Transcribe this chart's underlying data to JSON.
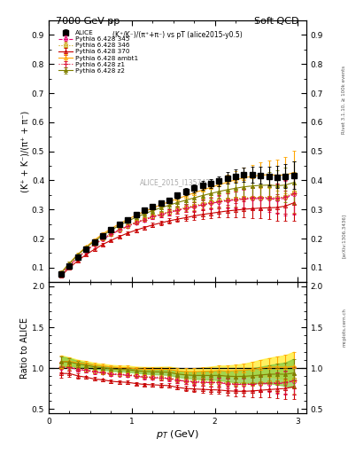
{
  "title_left": "7000 GeV pp",
  "title_right": "Soft QCD",
  "subplot_title": "(K⁺/K⁻)/(π⁺+π⁻) vs pT (alice2015-y0.5)",
  "ylabel_main": "(K⁺ + K⁻)/(π⁺ + π⁻)",
  "ylabel_ratio": "Ratio to ALICE",
  "xlabel": "p_T (GeV)",
  "watermark": "ALICE_2015_I1357424",
  "right_label1": "Rivet 3.1.10, ≥ 100k events",
  "right_label2": "[arXiv:1306.3436]",
  "right_label3": "mcplots.cern.ch",
  "ylim_main": [
    0.05,
    0.95
  ],
  "ylim_ratio": [
    0.45,
    2.05
  ],
  "xlim": [
    0.0,
    3.1
  ],
  "yticks_main": [
    0.1,
    0.2,
    0.3,
    0.4,
    0.5,
    0.6,
    0.7,
    0.8,
    0.9
  ],
  "yticks_ratio": [
    0.5,
    1.0,
    1.5,
    2.0
  ],
  "alice_x": [
    0.15,
    0.25,
    0.35,
    0.45,
    0.55,
    0.65,
    0.75,
    0.85,
    0.95,
    1.05,
    1.15,
    1.25,
    1.35,
    1.45,
    1.55,
    1.65,
    1.75,
    1.85,
    1.95,
    2.05,
    2.15,
    2.25,
    2.35,
    2.45,
    2.55,
    2.65,
    2.75,
    2.85,
    2.95
  ],
  "alice_y": [
    0.077,
    0.107,
    0.137,
    0.163,
    0.188,
    0.21,
    0.231,
    0.249,
    0.265,
    0.282,
    0.297,
    0.31,
    0.321,
    0.332,
    0.349,
    0.362,
    0.373,
    0.382,
    0.39,
    0.397,
    0.408,
    0.415,
    0.42,
    0.42,
    0.418,
    0.415,
    0.412,
    0.415,
    0.418
  ],
  "alice_yerr": [
    0.005,
    0.005,
    0.005,
    0.005,
    0.005,
    0.005,
    0.006,
    0.006,
    0.007,
    0.007,
    0.008,
    0.008,
    0.009,
    0.01,
    0.011,
    0.012,
    0.013,
    0.015,
    0.016,
    0.018,
    0.02,
    0.022,
    0.025,
    0.028,
    0.03,
    0.033,
    0.038,
    0.042,
    0.048
  ],
  "pythia_x": [
    0.15,
    0.25,
    0.35,
    0.45,
    0.55,
    0.65,
    0.75,
    0.85,
    0.95,
    1.05,
    1.15,
    1.25,
    1.35,
    1.45,
    1.55,
    1.65,
    1.75,
    1.85,
    1.95,
    2.05,
    2.15,
    2.25,
    2.35,
    2.45,
    2.55,
    2.65,
    2.75,
    2.85,
    2.95
  ],
  "p345_y": [
    0.077,
    0.108,
    0.135,
    0.158,
    0.179,
    0.198,
    0.214,
    0.229,
    0.242,
    0.254,
    0.264,
    0.274,
    0.282,
    0.29,
    0.297,
    0.304,
    0.31,
    0.316,
    0.321,
    0.326,
    0.33,
    0.333,
    0.336,
    0.337,
    0.338,
    0.337,
    0.335,
    0.339,
    0.353
  ],
  "p346_y": [
    0.078,
    0.109,
    0.137,
    0.16,
    0.181,
    0.2,
    0.216,
    0.231,
    0.244,
    0.257,
    0.267,
    0.277,
    0.285,
    0.293,
    0.3,
    0.307,
    0.314,
    0.32,
    0.325,
    0.33,
    0.334,
    0.337,
    0.34,
    0.341,
    0.342,
    0.342,
    0.34,
    0.344,
    0.358
  ],
  "p370_y": [
    0.072,
    0.1,
    0.124,
    0.145,
    0.163,
    0.18,
    0.194,
    0.207,
    0.219,
    0.229,
    0.238,
    0.247,
    0.254,
    0.261,
    0.267,
    0.272,
    0.278,
    0.283,
    0.287,
    0.291,
    0.295,
    0.298,
    0.301,
    0.303,
    0.305,
    0.306,
    0.307,
    0.312,
    0.323
  ],
  "pambt1_y": [
    0.083,
    0.116,
    0.146,
    0.172,
    0.195,
    0.216,
    0.234,
    0.251,
    0.266,
    0.28,
    0.293,
    0.305,
    0.316,
    0.327,
    0.337,
    0.347,
    0.357,
    0.367,
    0.376,
    0.385,
    0.394,
    0.402,
    0.409,
    0.414,
    0.418,
    0.42,
    0.418,
    0.419,
    0.427
  ],
  "pz1_y": [
    0.078,
    0.108,
    0.135,
    0.159,
    0.18,
    0.199,
    0.215,
    0.23,
    0.243,
    0.255,
    0.265,
    0.275,
    0.283,
    0.291,
    0.298,
    0.305,
    0.311,
    0.317,
    0.322,
    0.327,
    0.331,
    0.335,
    0.338,
    0.34,
    0.341,
    0.341,
    0.339,
    0.343,
    0.355
  ],
  "pz2_y": [
    0.083,
    0.115,
    0.144,
    0.169,
    0.191,
    0.211,
    0.229,
    0.245,
    0.26,
    0.273,
    0.285,
    0.296,
    0.306,
    0.315,
    0.324,
    0.332,
    0.34,
    0.348,
    0.355,
    0.362,
    0.368,
    0.373,
    0.378,
    0.381,
    0.383,
    0.384,
    0.382,
    0.384,
    0.393
  ],
  "p345_yerr": [
    0.005,
    0.004,
    0.004,
    0.004,
    0.004,
    0.004,
    0.005,
    0.005,
    0.006,
    0.006,
    0.007,
    0.008,
    0.009,
    0.01,
    0.012,
    0.013,
    0.015,
    0.017,
    0.019,
    0.022,
    0.025,
    0.028,
    0.032,
    0.036,
    0.04,
    0.044,
    0.05,
    0.058,
    0.07
  ],
  "p346_yerr": [
    0.005,
    0.004,
    0.004,
    0.004,
    0.004,
    0.004,
    0.005,
    0.005,
    0.006,
    0.006,
    0.007,
    0.008,
    0.009,
    0.01,
    0.012,
    0.013,
    0.015,
    0.017,
    0.019,
    0.022,
    0.025,
    0.028,
    0.032,
    0.036,
    0.04,
    0.044,
    0.05,
    0.058,
    0.07
  ],
  "p370_yerr": [
    0.004,
    0.004,
    0.004,
    0.003,
    0.004,
    0.004,
    0.004,
    0.005,
    0.005,
    0.006,
    0.006,
    0.007,
    0.008,
    0.009,
    0.01,
    0.012,
    0.013,
    0.015,
    0.017,
    0.019,
    0.022,
    0.025,
    0.028,
    0.032,
    0.036,
    0.04,
    0.045,
    0.052,
    0.062
  ],
  "pambt1_yerr": [
    0.006,
    0.005,
    0.005,
    0.005,
    0.005,
    0.005,
    0.006,
    0.006,
    0.007,
    0.007,
    0.008,
    0.009,
    0.01,
    0.011,
    0.013,
    0.014,
    0.016,
    0.018,
    0.021,
    0.024,
    0.027,
    0.03,
    0.034,
    0.038,
    0.043,
    0.047,
    0.053,
    0.062,
    0.075
  ],
  "pz1_yerr": [
    0.005,
    0.004,
    0.004,
    0.004,
    0.004,
    0.004,
    0.005,
    0.005,
    0.006,
    0.006,
    0.007,
    0.008,
    0.009,
    0.01,
    0.012,
    0.013,
    0.015,
    0.017,
    0.019,
    0.022,
    0.025,
    0.028,
    0.032,
    0.036,
    0.04,
    0.044,
    0.05,
    0.058,
    0.07
  ],
  "pz2_yerr": [
    0.005,
    0.005,
    0.005,
    0.005,
    0.005,
    0.005,
    0.006,
    0.006,
    0.007,
    0.007,
    0.008,
    0.009,
    0.01,
    0.011,
    0.013,
    0.014,
    0.016,
    0.018,
    0.02,
    0.023,
    0.026,
    0.03,
    0.033,
    0.038,
    0.042,
    0.046,
    0.052,
    0.06,
    0.073
  ],
  "color_345": "#e8006e",
  "color_346": "#c8a000",
  "color_370": "#c80000",
  "color_ambt1": "#ffa500",
  "color_z1": "#dc143c",
  "color_z2": "#808000",
  "band_ambt1_color": "#ffee44",
  "band_z2_color": "#88cc44"
}
